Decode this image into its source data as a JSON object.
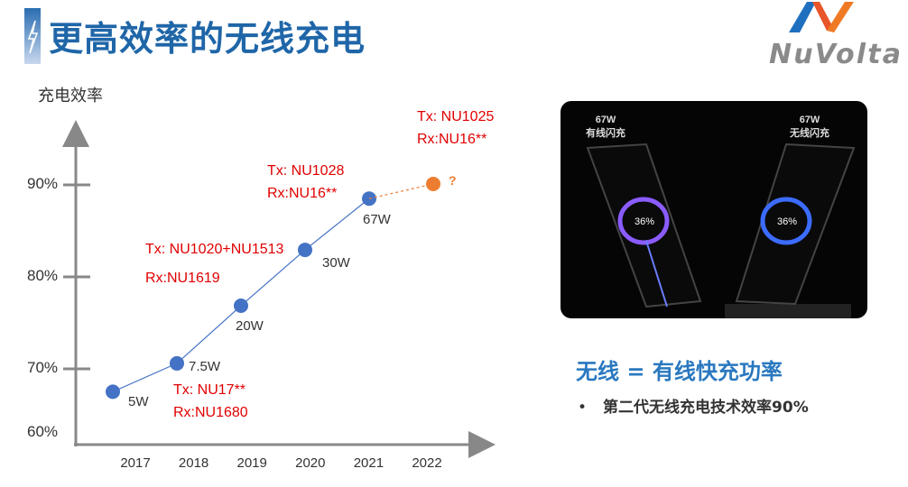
{
  "title": "更高效率的无线充电",
  "logo_text": "NuVolta",
  "chart_data": {
    "type": "line",
    "ylabel": "充电效率",
    "categories": [
      "2017",
      "2018",
      "2019",
      "2020",
      "2021",
      "2022"
    ],
    "y_ticks": [
      "90%",
      "80%",
      "70%",
      "60%"
    ],
    "series": [
      {
        "values": [
          67.4,
          70.5,
          76.8,
          82.9,
          88.5,
          null
        ],
        "color": "#4472c4",
        "point_labels": [
          "5W",
          "7.5W",
          "20W",
          "30W",
          "67W"
        ]
      },
      {
        "values": [
          null,
          null,
          null,
          null,
          88.5,
          90.1
        ],
        "color": "#ed7d31",
        "dashed": true,
        "point_labels": [
          "?"
        ]
      }
    ],
    "annotations": [
      "Tx: NU17**\nRx:NU1680",
      "Tx: NU1020+NU1513\nRx:NU1619",
      "Tx: NU1028\nRx:NU16**",
      "Tx: NU1025\nRx:NU16**"
    ]
  },
  "photo": {
    "left_caption": "67W\n有线闪充",
    "right_caption": "67W\n无线闪充",
    "screen_text": "36%"
  },
  "headline": "无线 = 有线快充功率",
  "bullet": {
    "marker": "•",
    "text": "第二代无线充电技术效率90%"
  }
}
